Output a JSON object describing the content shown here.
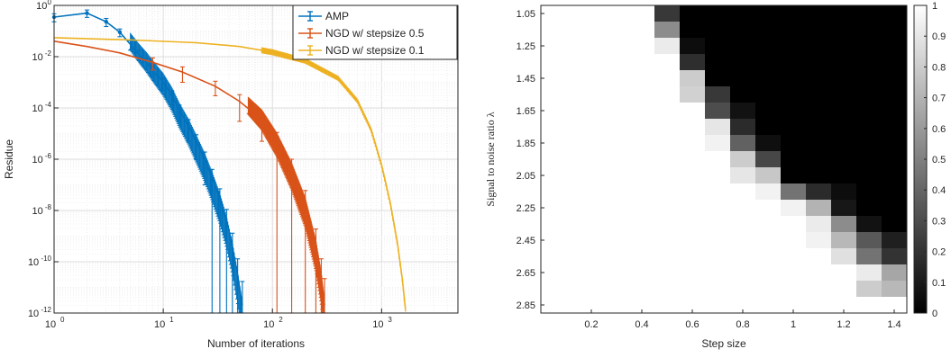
{
  "figure_title": "",
  "chart_data": [
    {
      "type": "line",
      "title": "",
      "xlabel": "Number of iterations",
      "ylabel": "Residue",
      "xscale": "log",
      "yscale": "log",
      "xlim": [
        1,
        5000
      ],
      "ylim": [
        1e-12,
        1
      ],
      "grid": true,
      "legend_position": "top-right",
      "x_ticks": [
        {
          "value": 1,
          "base": "10",
          "exp": "0"
        },
        {
          "value": 10,
          "base": "10",
          "exp": "1"
        },
        {
          "value": 100,
          "base": "10",
          "exp": "2"
        },
        {
          "value": 1000,
          "base": "10",
          "exp": "3"
        }
      ],
      "y_ticks": [
        {
          "value": 1e-12,
          "base": "10",
          "exp": "-12"
        },
        {
          "value": 1e-10,
          "base": "10",
          "exp": "-10"
        },
        {
          "value": 1e-08,
          "base": "10",
          "exp": "-8"
        },
        {
          "value": 1e-06,
          "base": "10",
          "exp": "-6"
        },
        {
          "value": 0.0001,
          "base": "10",
          "exp": "-4"
        },
        {
          "value": 0.01,
          "base": "10",
          "exp": "-2"
        },
        {
          "value": 1,
          "base": "10",
          "exp": "0"
        }
      ],
      "series": [
        {
          "name": "AMP",
          "color": "#0072BD",
          "points": [
            [
              1,
              0.35
            ],
            [
              2,
              0.5
            ],
            [
              3,
              0.23
            ],
            [
              4,
              0.09
            ],
            [
              5,
              0.03
            ],
            [
              6,
              0.012
            ],
            [
              7,
              0.006
            ],
            [
              8,
              0.003
            ],
            [
              10,
              0.001
            ],
            [
              12,
              0.0003
            ],
            [
              14,
              8e-05
            ],
            [
              17,
              2e-05
            ],
            [
              20,
              5e-06
            ],
            [
              24,
              1e-06
            ],
            [
              28,
              2e-07
            ],
            [
              33,
              3e-08
            ],
            [
              38,
              4e-09
            ],
            [
              43,
              4e-10
            ],
            [
              48,
              3e-11
            ],
            [
              53,
              2e-12
            ]
          ],
          "errors": [
            [
              1,
              0.12
            ],
            [
              2,
              0.16
            ],
            [
              3,
              0.08
            ],
            [
              4,
              0.03
            ],
            [
              5,
              0.012
            ],
            [
              6,
              0.005
            ],
            [
              7,
              0.0025
            ],
            [
              8,
              0.0013
            ],
            [
              10,
              0.0005
            ],
            [
              12,
              0.00017
            ],
            [
              14,
              5e-05
            ],
            [
              17,
              1.5e-05
            ],
            [
              20,
              4e-06
            ],
            [
              24,
              9e-07
            ],
            [
              28,
              2e-07
            ],
            [
              33,
              4e-08
            ],
            [
              38,
              7e-09
            ],
            [
              43,
              9e-10
            ],
            [
              48,
              1e-10
            ],
            [
              53,
              1.5e-11
            ]
          ]
        },
        {
          "name": "NGD w/ stepsize 0.5",
          "color": "#D95319",
          "points": [
            [
              1,
              0.04
            ],
            [
              2,
              0.025
            ],
            [
              4,
              0.014
            ],
            [
              8,
              0.006
            ],
            [
              15,
              0.0025
            ],
            [
              30,
              0.0007
            ],
            [
              50,
              0.00018
            ],
            [
              80,
              3.5e-05
            ],
            [
              110,
              5e-06
            ],
            [
              150,
              4e-07
            ],
            [
              200,
              2e-08
            ],
            [
              250,
              5e-10
            ],
            [
              280,
              3e-11
            ],
            [
              300,
              2e-12
            ]
          ],
          "errors": [
            [
              8,
              0.003
            ],
            [
              15,
              0.0015
            ],
            [
              30,
              0.0004
            ],
            [
              50,
              0.00015
            ],
            [
              80,
              3e-05
            ],
            [
              110,
              6e-06
            ],
            [
              150,
              6e-07
            ],
            [
              200,
              4e-08
            ],
            [
              250,
              1.4e-09
            ],
            [
              280,
              1e-10
            ],
            [
              300,
              2e-11
            ]
          ]
        },
        {
          "name": "NGD w/ stepsize 0.1",
          "color": "#EDB120",
          "points": [
            [
              1,
              0.055
            ],
            [
              5,
              0.045
            ],
            [
              20,
              0.035
            ],
            [
              50,
              0.025
            ],
            [
              100,
              0.015
            ],
            [
              200,
              0.007
            ],
            [
              400,
              0.0015
            ],
            [
              600,
              0.0002
            ],
            [
              800,
              1.5e-05
            ],
            [
              1000,
              6e-07
            ],
            [
              1200,
              2e-08
            ],
            [
              1400,
              5e-10
            ],
            [
              1550,
              2e-11
            ],
            [
              1650,
              1.5e-12
            ]
          ],
          "errors": []
        }
      ]
    },
    {
      "type": "heatmap",
      "title": "",
      "xlabel": "Step size",
      "ylabel": "Signal to noise ratio λ",
      "x_tick_labels": [
        "0.2",
        "0.4",
        "0.6",
        "0.8",
        "1",
        "1.2",
        "1.4"
      ],
      "x_tick_values": [
        0.2,
        0.4,
        0.6,
        0.8,
        1.0,
        1.2,
        1.4
      ],
      "y_tick_labels": [
        "1.05",
        "1.25",
        "1.45",
        "1.65",
        "1.85",
        "2.05",
        "2.25",
        "2.45",
        "2.65",
        "2.85"
      ],
      "x_values": [
        0.0,
        0.1,
        0.2,
        0.3,
        0.4,
        0.5,
        0.6,
        0.7,
        0.8,
        0.9,
        1.0,
        1.1,
        1.2,
        1.3,
        1.4
      ],
      "y_values": [
        1.05,
        1.15,
        1.25,
        1.35,
        1.45,
        1.55,
        1.65,
        1.75,
        1.85,
        1.95,
        2.05,
        2.15,
        2.25,
        2.35,
        2.45,
        2.55,
        2.65,
        2.75,
        2.85
      ],
      "colorbar": {
        "min": 0,
        "max": 1,
        "ticks": [
          "0",
          "0.1",
          "0.2",
          "0.3",
          "0.4",
          "0.5",
          "0.6",
          "0.7",
          "0.8",
          "0.9",
          "1"
        ],
        "tick_values": [
          0,
          0.1,
          0.2,
          0.3,
          0.4,
          0.5,
          0.6,
          0.7,
          0.8,
          0.9,
          1
        ]
      },
      "grid": false,
      "rows": [
        [
          1,
          1,
          1,
          1,
          1,
          0.22,
          0,
          0,
          0,
          0,
          0,
          0,
          0,
          0,
          0
        ],
        [
          1,
          1,
          1,
          1,
          1,
          0.55,
          0,
          0,
          0,
          0,
          0,
          0,
          0,
          0,
          0
        ],
        [
          1,
          1,
          1,
          1,
          1,
          0.92,
          0.05,
          0,
          0,
          0,
          0,
          0,
          0,
          0,
          0
        ],
        [
          1,
          1,
          1,
          1,
          1,
          1,
          0.18,
          0,
          0,
          0,
          0,
          0,
          0,
          0,
          0
        ],
        [
          1,
          1,
          1,
          1,
          1,
          1,
          0.8,
          0,
          0,
          0,
          0,
          0,
          0,
          0,
          0
        ],
        [
          1,
          1,
          1,
          1,
          1,
          1,
          0.82,
          0.22,
          0,
          0,
          0,
          0,
          0,
          0,
          0
        ],
        [
          1,
          1,
          1,
          1,
          1,
          1,
          1,
          0.3,
          0.07,
          0,
          0,
          0,
          0,
          0,
          0
        ],
        [
          1,
          1,
          1,
          1,
          1,
          1,
          1,
          0.9,
          0.17,
          0,
          0,
          0,
          0,
          0,
          0
        ],
        [
          1,
          1,
          1,
          1,
          1,
          1,
          1,
          0.95,
          0.38,
          0.06,
          0,
          0,
          0,
          0,
          0
        ],
        [
          1,
          1,
          1,
          1,
          1,
          1,
          1,
          1,
          0.8,
          0.28,
          0,
          0,
          0,
          0,
          0
        ],
        [
          1,
          1,
          1,
          1,
          1,
          1,
          1,
          1,
          0.9,
          0.78,
          0,
          0,
          0,
          0,
          0
        ],
        [
          1,
          1,
          1,
          1,
          1,
          1,
          1,
          1,
          1,
          0.95,
          0.45,
          0.17,
          0.05,
          0,
          0
        ],
        [
          1,
          1,
          1,
          1,
          1,
          1,
          1,
          1,
          1,
          1,
          0.95,
          0.7,
          0.09,
          0,
          0
        ],
        [
          1,
          1,
          1,
          1,
          1,
          1,
          1,
          1,
          1,
          1,
          1,
          0.92,
          0.55,
          0.07,
          0
        ],
        [
          1,
          1,
          1,
          1,
          1,
          1,
          1,
          1,
          1,
          1,
          1,
          0.95,
          0.72,
          0.35,
          0.12
        ],
        [
          1,
          1,
          1,
          1,
          1,
          1,
          1,
          1,
          1,
          1,
          1,
          1,
          0.88,
          0.45,
          0.2
        ],
        [
          1,
          1,
          1,
          1,
          1,
          1,
          1,
          1,
          1,
          1,
          1,
          1,
          1,
          0.92,
          0.65
        ],
        [
          1,
          1,
          1,
          1,
          1,
          1,
          1,
          1,
          1,
          1,
          1,
          1,
          1,
          0.8,
          0.72
        ],
        [
          1,
          1,
          1,
          1,
          1,
          1,
          1,
          1,
          1,
          1,
          1,
          1,
          1,
          1,
          1
        ]
      ]
    }
  ]
}
